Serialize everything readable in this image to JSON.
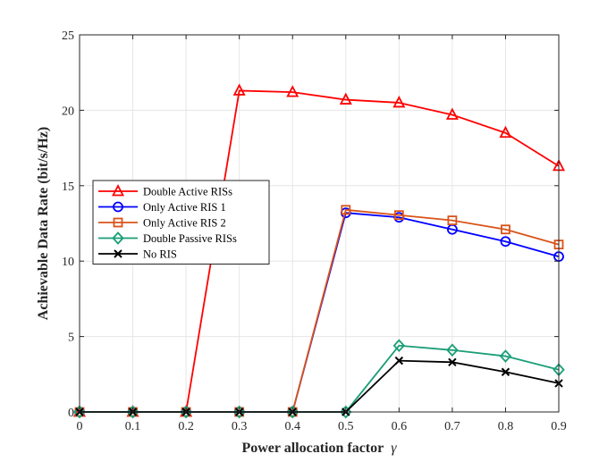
{
  "chart_data": {
    "type": "line",
    "title": "",
    "xlabel": "Power allocation factor",
    "xlabel_symbol": "γ",
    "ylabel": "Achievable Data Rate (bit/s/Hz)",
    "x": [
      0,
      0.1,
      0.2,
      0.3,
      0.4,
      0.5,
      0.6,
      0.7,
      0.8,
      0.9
    ],
    "xlim": [
      0,
      0.9
    ],
    "ylim": [
      0,
      25
    ],
    "xticks": [
      "0",
      "0.1",
      "0.2",
      "0.3",
      "0.4",
      "0.5",
      "0.6",
      "0.7",
      "0.8",
      "0.9"
    ],
    "yticks": [
      "0",
      "5",
      "10",
      "15",
      "20",
      "25"
    ],
    "grid": true,
    "legend_position": "center-left",
    "series": [
      {
        "name": "Double Active RISs",
        "color": "#ff0000",
        "marker": "triangle",
        "values": [
          0,
          0,
          0,
          21.3,
          21.2,
          20.7,
          20.5,
          19.7,
          18.5,
          16.3
        ]
      },
      {
        "name": "Only Active RIS 1",
        "color": "#0000ff",
        "marker": "circle",
        "values": [
          0,
          0,
          0,
          0,
          0,
          13.2,
          12.9,
          12.1,
          11.3,
          10.3
        ]
      },
      {
        "name": "Only Active RIS 2",
        "color": "#d95319",
        "marker": "square",
        "values": [
          0,
          0,
          0,
          0,
          0,
          13.4,
          13.05,
          12.7,
          12.1,
          11.1
        ]
      },
      {
        "name": "Double Passive RISs",
        "color": "#1a9e77",
        "marker": "diamond",
        "values": [
          0,
          0,
          0,
          0,
          0,
          0,
          4.4,
          4.1,
          3.7,
          2.8
        ]
      },
      {
        "name": "No RIS",
        "color": "#000000",
        "marker": "x",
        "values": [
          0,
          0,
          0,
          0,
          0,
          0,
          3.4,
          3.3,
          2.65,
          1.9
        ]
      }
    ]
  }
}
